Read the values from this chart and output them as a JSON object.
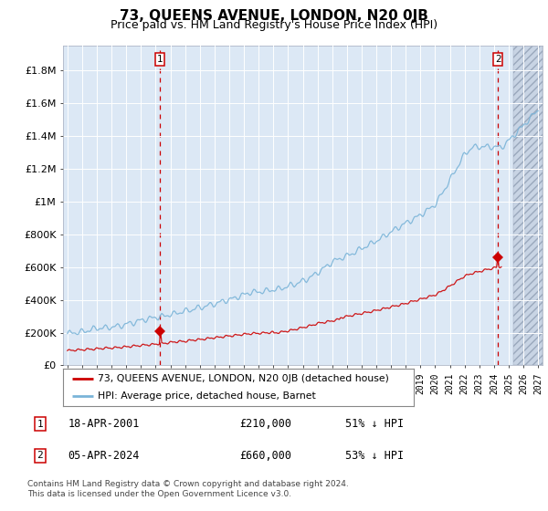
{
  "title": "73, QUEENS AVENUE, LONDON, N20 0JB",
  "subtitle": "Price paid vs. HM Land Registry's House Price Index (HPI)",
  "ylabel_ticks": [
    "£0",
    "£200K",
    "£400K",
    "£600K",
    "£800K",
    "£1M",
    "£1.2M",
    "£1.4M",
    "£1.6M",
    "£1.8M"
  ],
  "ytick_values": [
    0,
    200000,
    400000,
    600000,
    800000,
    1000000,
    1200000,
    1400000,
    1600000,
    1800000
  ],
  "ylim": [
    0,
    1950000
  ],
  "xlim_start": 1994.7,
  "xlim_end": 2027.3,
  "point1_x": 2001.29,
  "point1_y": 210000,
  "point1_label": "18-APR-2001",
  "point1_price": "£210,000",
  "point1_hpi": "51% ↓ HPI",
  "point2_x": 2024.27,
  "point2_y": 660000,
  "point2_label": "05-APR-2024",
  "point2_price": "£660,000",
  "point2_hpi": "53% ↓ HPI",
  "red_line_color": "#cc0000",
  "hpi_line_color": "#7ab4d8",
  "legend_label_red": "73, QUEENS AVENUE, LONDON, N20 0JB (detached house)",
  "legend_label_blue": "HPI: Average price, detached house, Barnet",
  "footnote": "Contains HM Land Registry data © Crown copyright and database right 2024.\nThis data is licensed under the Open Government Licence v3.0.",
  "background_color": "#dce8f5",
  "hatch_region_start": 2025.3,
  "grid_color": "#ffffff",
  "title_fontsize": 11,
  "subtitle_fontsize": 9,
  "tick_fontsize": 8
}
